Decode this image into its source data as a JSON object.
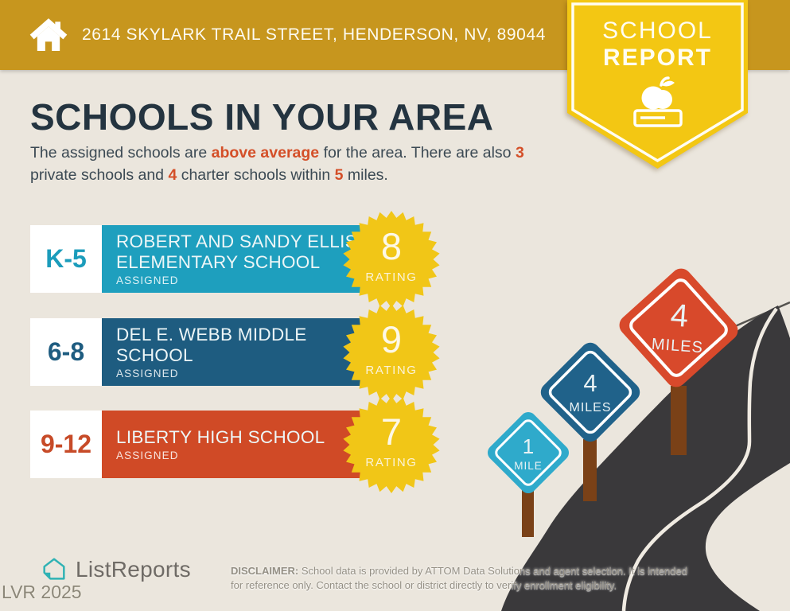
{
  "header": {
    "address": "2614 SKYLARK TRAIL STREET, HENDERSON, NV, 89044",
    "badge": {
      "line1": "SCHOOL",
      "line2": "REPORT"
    }
  },
  "main": {
    "title": "SCHOOLS IN YOUR AREA",
    "subtitle": {
      "seg1": "The assigned schools are ",
      "hl1": "above average",
      "seg2": " for the area. There are also ",
      "hl2": "3",
      "seg3": " private schools and ",
      "hl3": "4",
      "seg4": " charter schools within ",
      "hl4": "5",
      "seg5": " miles."
    }
  },
  "schools": [
    {
      "grade": "K-5",
      "name_line1": "ROBERT AND SANDY ELLIS",
      "name_line2": "ELEMENTARY SCHOOL",
      "status": "ASSIGNED",
      "rating": "8",
      "rating_label": "RATING",
      "bar_color": "#1E9FBE"
    },
    {
      "grade": "6-8",
      "name_line1": "DEL E. WEBB MIDDLE",
      "name_line2": "SCHOOL",
      "status": "ASSIGNED",
      "rating": "9",
      "rating_label": "RATING",
      "bar_color": "#1E5C80"
    },
    {
      "grade": "9-12",
      "name_line1": "LIBERTY HIGH SCHOOL",
      "name_line2": "",
      "status": "ASSIGNED",
      "rating": "7",
      "rating_label": "RATING",
      "bar_color": "#D04A26"
    }
  ],
  "road_signs": [
    {
      "value": "1",
      "unit": "MILE",
      "color": "#2FAACB"
    },
    {
      "value": "4",
      "unit": "MILES",
      "color": "#20628A"
    },
    {
      "value": "4",
      "unit": "MILES",
      "color": "#D8492B"
    }
  ],
  "footer": {
    "brand": "ListReports",
    "watermark": "LVR 2025",
    "disclaimer_bold": "DISCLAIMER:",
    "disclaimer_rest": " School data is provided by ATTOM Data Solutions and agent selection. It is intended for reference only. Contact the school or district directly to verify enrollment eligibility."
  },
  "colors": {
    "background": "#EBE6DD",
    "header_gold": "#C7961E",
    "ribbon_yellow": "#F3C713",
    "badge_yellow": "#F1C617",
    "accent_orange": "#D44F28",
    "title_navy": "#243440",
    "teal": "#1E9FBE",
    "navy_blue": "#1E5C80",
    "red": "#D04A26",
    "road_dark": "#3A393B",
    "post_brown": "#7A4117",
    "logo_teal": "#2FB2B4"
  }
}
